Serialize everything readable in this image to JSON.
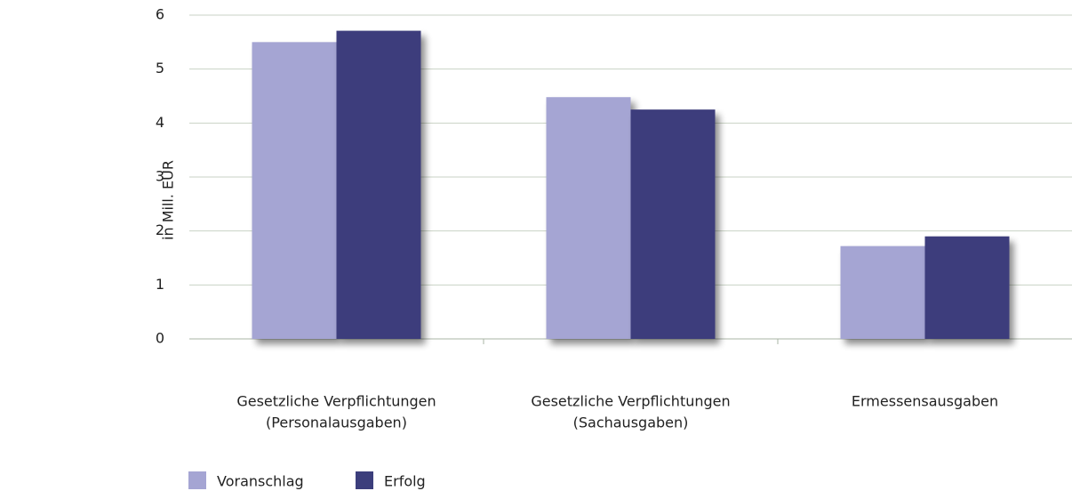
{
  "chart_data": {
    "type": "bar",
    "y_label": "in Mill. EUR",
    "categories": [
      [
        "Gesetzliche Verpflichtungen",
        "(Personalausgaben)"
      ],
      [
        "Gesetzliche Verpflichtungen",
        "(Sachausgaben)"
      ],
      [
        "Ermessensausgaben"
      ]
    ],
    "series": [
      {
        "name": "Voranschlag",
        "color": "#a5a5d3",
        "values": [
          5.5,
          4.48,
          1.72
        ]
      },
      {
        "name": "Erfolg",
        "color": "#3c3e7c",
        "values": [
          5.71,
          4.25,
          1.9
        ]
      }
    ],
    "ylim": [
      0,
      6
    ],
    "yticks": [
      0,
      1,
      2,
      3,
      4,
      5,
      6
    ],
    "grid": true,
    "legend": "bottom-left"
  }
}
